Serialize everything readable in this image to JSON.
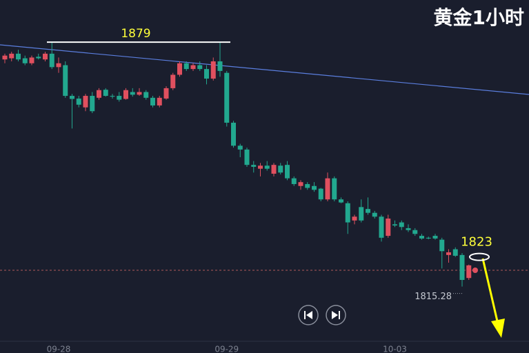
{
  "chart_data": {
    "type": "candlestick",
    "title": "黄金1小时",
    "categories": [
      null,
      null,
      null,
      null,
      null,
      null,
      null,
      null,
      "09-28",
      null,
      null,
      null,
      null,
      null,
      null,
      null,
      null,
      null,
      null,
      null,
      null,
      null,
      null,
      null,
      null,
      null,
      null,
      null,
      null,
      null,
      null,
      null,
      null,
      "09-29",
      null,
      null,
      null,
      null,
      null,
      null,
      null,
      null,
      null,
      null,
      null,
      null,
      null,
      null,
      null,
      null,
      null,
      null,
      null,
      null,
      null,
      null,
      null,
      null,
      "10-03",
      null,
      null,
      null,
      null,
      null,
      null,
      null,
      null,
      null,
      null,
      null
    ],
    "ohlc": [
      [
        1874.5,
        1876,
        1873.5,
        1875.5
      ],
      [
        1874.8,
        1876.5,
        1874,
        1876
      ],
      [
        1876,
        1877,
        1874,
        1874.5
      ],
      [
        1874.8,
        1875.5,
        1873,
        1873.5
      ],
      [
        1873.5,
        1875.5,
        1873,
        1875
      ],
      [
        1875.2,
        1876,
        1874.5,
        1874.8
      ],
      [
        1874.5,
        1876.5,
        1874,
        1876
      ],
      [
        1876,
        1879,
        1872,
        1872.5
      ],
      [
        1872.5,
        1875,
        1871,
        1873.5
      ],
      [
        1873,
        1874,
        1864.5,
        1865
      ],
      [
        1865,
        1865.5,
        1856.5,
        1864.2
      ],
      [
        1864.3,
        1865,
        1862,
        1862.7
      ],
      [
        1862,
        1865.5,
        1861,
        1865
      ],
      [
        1865,
        1866,
        1860.5,
        1861
      ],
      [
        1864.5,
        1867,
        1864,
        1866.5
      ],
      [
        1866.6,
        1867,
        1864.8,
        1865
      ],
      [
        1865,
        1865.5,
        1864.3,
        1864.8
      ],
      [
        1865,
        1866,
        1863.5,
        1864
      ],
      [
        1864.2,
        1867,
        1864,
        1866.5
      ],
      [
        1866,
        1867,
        1864.8,
        1865.3
      ],
      [
        1865.3,
        1867,
        1865,
        1866
      ],
      [
        1866,
        1866.5,
        1864,
        1864.5
      ],
      [
        1864.5,
        1865,
        1862,
        1862.5
      ],
      [
        1862.5,
        1865,
        1862,
        1864.5
      ],
      [
        1864.3,
        1867.5,
        1864,
        1867
      ],
      [
        1867,
        1871,
        1866.5,
        1870.5
      ],
      [
        1870.5,
        1874,
        1870,
        1873.5
      ],
      [
        1873.5,
        1874,
        1871.5,
        1872
      ],
      [
        1872,
        1873.5,
        1871.5,
        1873
      ],
      [
        1873,
        1874,
        1871.5,
        1872
      ],
      [
        1872,
        1873,
        1868,
        1869.5
      ],
      [
        1869.5,
        1875,
        1869,
        1874
      ],
      [
        1874,
        1879,
        1870,
        1871.5
      ],
      [
        1871,
        1871.5,
        1857,
        1858
      ],
      [
        1858,
        1858.5,
        1851.5,
        1852
      ],
      [
        1852,
        1852.5,
        1849,
        1851
      ],
      [
        1851,
        1851.5,
        1846.5,
        1847
      ],
      [
        1847,
        1848,
        1845,
        1846.5
      ],
      [
        1846,
        1847.5,
        1844,
        1846.8
      ],
      [
        1846.8,
        1848,
        1845.5,
        1846
      ],
      [
        1844.7,
        1847.5,
        1844,
        1847
      ],
      [
        1846.8,
        1847.5,
        1844.5,
        1845
      ],
      [
        1847,
        1848,
        1843,
        1843.5
      ],
      [
        1843.5,
        1844,
        1841.5,
        1842
      ],
      [
        1841.5,
        1843,
        1840.5,
        1842.5
      ],
      [
        1842,
        1842.5,
        1840.5,
        1841
      ],
      [
        1841.5,
        1842.5,
        1840,
        1840.5
      ],
      [
        1840.8,
        1841,
        1837.5,
        1838
      ],
      [
        1838,
        1845,
        1837.5,
        1843.5
      ],
      [
        1843.5,
        1844,
        1837.5,
        1838
      ],
      [
        1838,
        1838.5,
        1837,
        1837.2
      ],
      [
        1837,
        1837.5,
        1829,
        1832
      ],
      [
        1832.5,
        1834,
        1831.5,
        1833.5
      ],
      [
        1836,
        1838,
        1832,
        1832.5
      ],
      [
        1835.5,
        1838.5,
        1834,
        1834.5
      ],
      [
        1834.5,
        1835,
        1833,
        1833.5
      ],
      [
        1833.5,
        1834,
        1827,
        1828
      ],
      [
        1828.5,
        1834,
        1828,
        1833
      ],
      [
        1831.5,
        1832.5,
        1830.8,
        1831.2
      ],
      [
        1832,
        1832.5,
        1830,
        1830.8
      ],
      [
        1830.5,
        1831.5,
        1829.5,
        1830
      ],
      [
        1830,
        1830.5,
        1828.5,
        1829
      ],
      [
        1828.5,
        1829,
        1827.5,
        1827.8
      ],
      [
        1828,
        1828.3,
        1827.6,
        1827.8
      ],
      [
        1828.5,
        1829,
        1827.5,
        1827.8
      ],
      [
        1827.5,
        1828,
        1820,
        1824.5
      ],
      [
        1823.5,
        1825,
        1821.5,
        1824.2
      ],
      [
        1825,
        1825.5,
        1823,
        1823.3
      ],
      [
        1823.5,
        1824,
        1815.28,
        1817
      ],
      [
        1817.5,
        1821,
        1817,
        1820.8
      ]
    ],
    "up_color": "#e0505f",
    "down_color": "#22a88f",
    "ylim": [
      1801,
      1890
    ],
    "levels": [
      1879,
      1823
    ],
    "low_label": 1815.28
  }
}
